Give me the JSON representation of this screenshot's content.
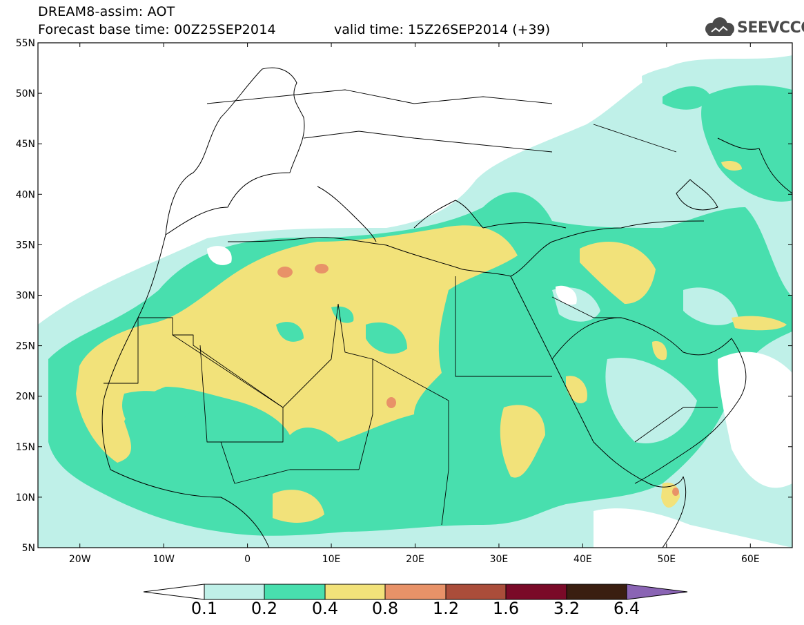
{
  "header": {
    "title": "DREAM8-assim: AOT",
    "base_time": "Forecast base time: 00Z25SEP2014",
    "valid_time": "valid time: 15Z26SEP2014 (+39)",
    "logo_text": "SEEVCCC"
  },
  "map": {
    "lon_range": [
      -25,
      65
    ],
    "lat_range": [
      5,
      55
    ],
    "lat_ticks": [
      "55N",
      "50N",
      "45N",
      "40N",
      "35N",
      "30N",
      "25N",
      "20N",
      "15N",
      "10N",
      "5N"
    ],
    "lon_ticks": [
      "20W",
      "10W",
      "0",
      "10E",
      "20E",
      "30E",
      "40E",
      "50E",
      "60E"
    ]
  },
  "colorbar": {
    "labels": [
      "0.1",
      "0.2",
      "0.4",
      "0.8",
      "1.2",
      "1.6",
      "3.2",
      "6.4"
    ],
    "colors": [
      "#ffffff",
      "#bff0e8",
      "#48dfae",
      "#f2e27a",
      "#e89268",
      "#aa4d3a",
      "#7a0a28",
      "#3a1e10",
      "#8a64b4"
    ]
  },
  "legend_colors": {
    "light_cyan": "#bff0e8",
    "green": "#48dfae",
    "yellow": "#f2e27a",
    "orange": "#e89268",
    "brown_red": "#aa4d3a"
  }
}
